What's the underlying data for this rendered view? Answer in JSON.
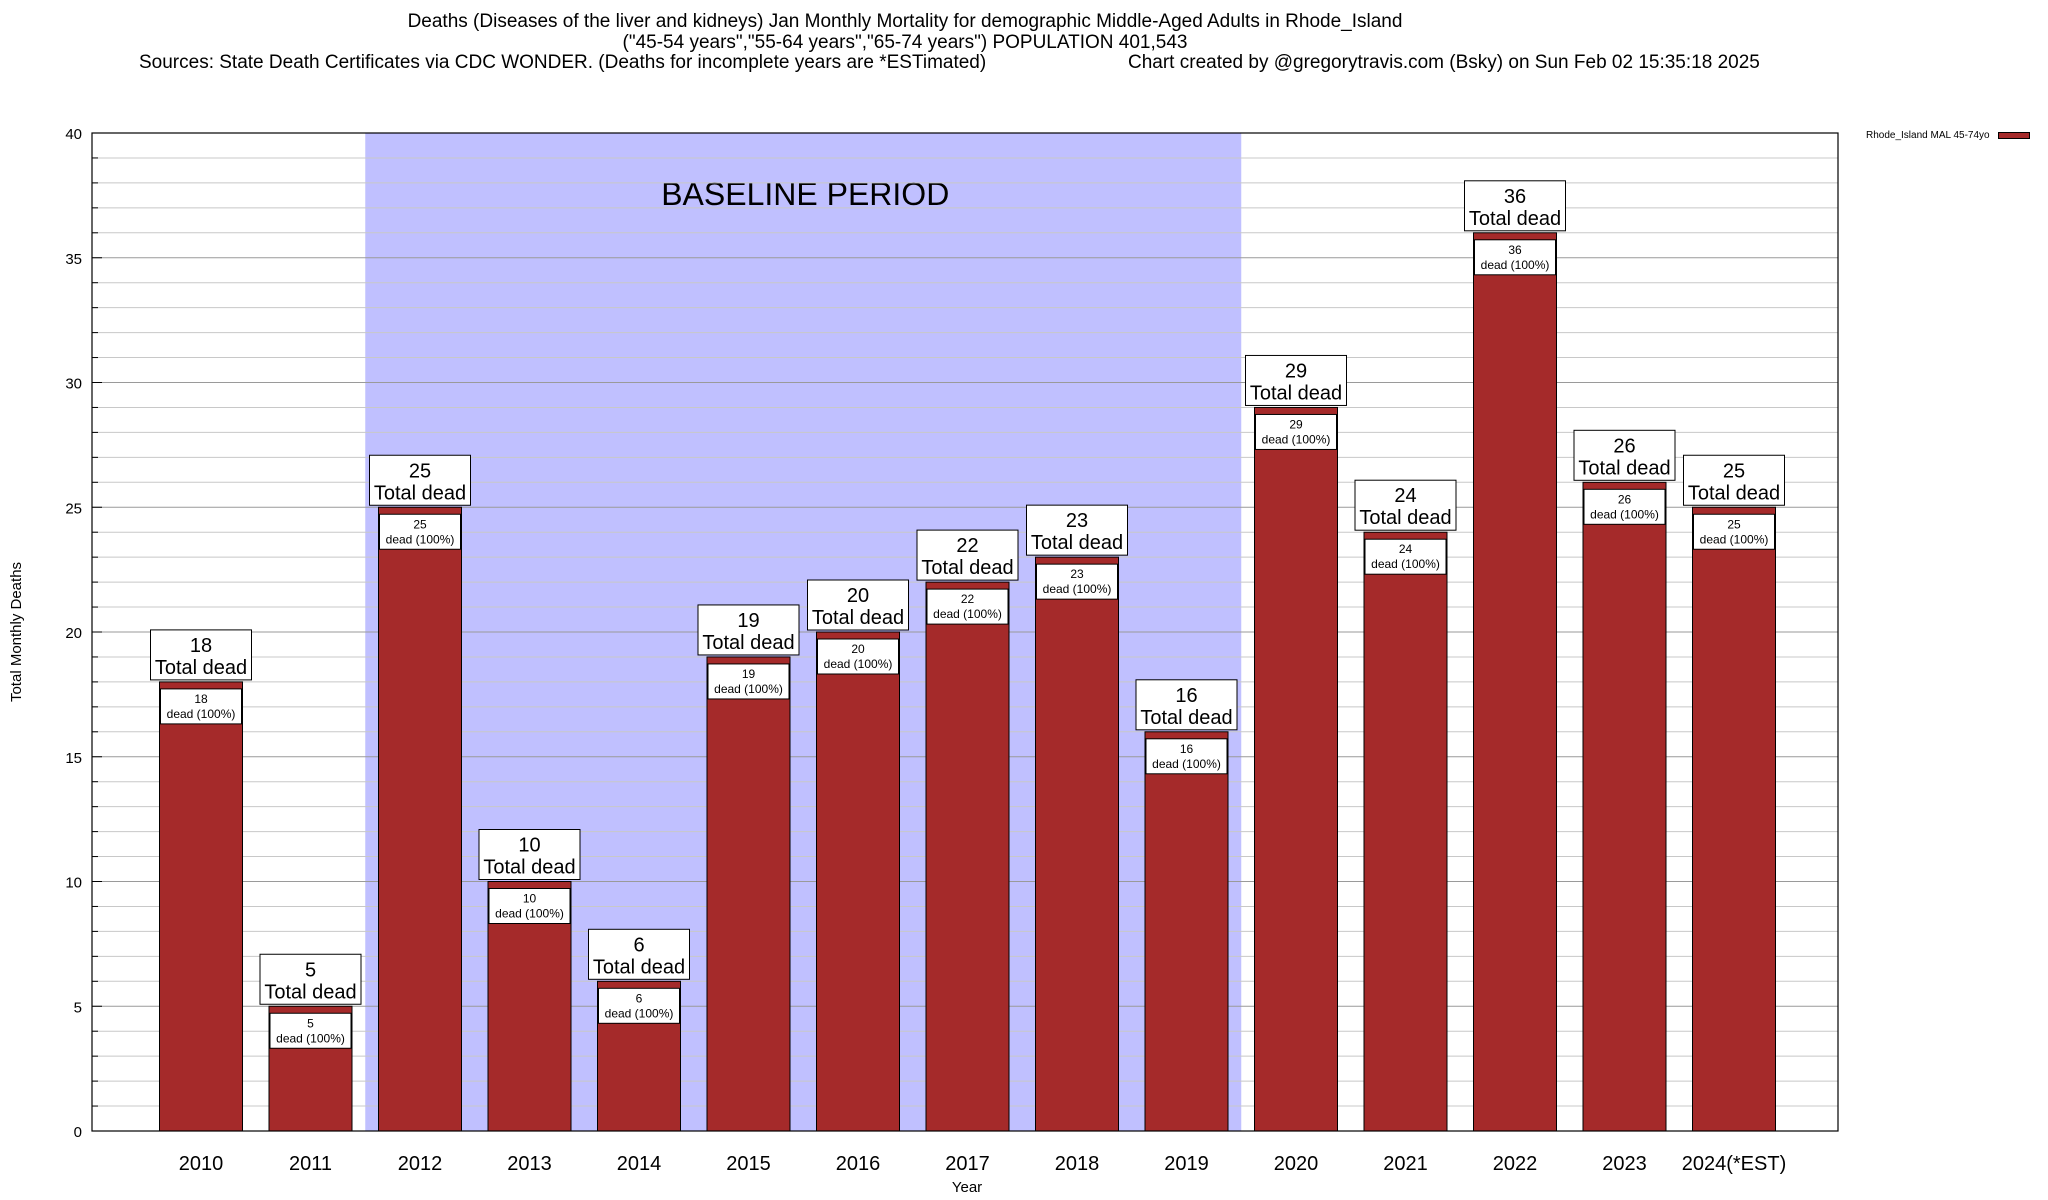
{
  "header": {
    "title_line1": "Deaths (Diseases of the liver and kidneys) Jan Monthly Mortality for demographic Middle-Aged Adults in Rhode_Island",
    "title_line2": "(\"45-54 years\",\"55-64 years\",\"65-74 years\") POPULATION 401,543",
    "sources": "Sources: State Death Certificates via CDC WONDER. (Deaths for incomplete years are *ESTimated)",
    "credit": "Chart created by @gregorytravis.com (Bsky) on Sun Feb 02 15:35:18 2025"
  },
  "legend": {
    "label": "Rhode_Island MAL 45-74yo",
    "color": "#a52a2a"
  },
  "chart_data": {
    "type": "bar",
    "xlabel": "Year",
    "ylabel": "Total Monthly Deaths",
    "ylim": [
      0,
      40
    ],
    "yticks": [
      0,
      5,
      10,
      15,
      20,
      25,
      30,
      35,
      40
    ],
    "grid": true,
    "legend_position": "top-right",
    "categories": [
      "2010",
      "2011",
      "2012",
      "2013",
      "2014",
      "2015",
      "2016",
      "2017",
      "2018",
      "2019",
      "2020",
      "2021",
      "2022",
      "2023",
      "2024(*EST)"
    ],
    "series": [
      {
        "name": "Rhode_Island MAL 45-74yo",
        "color": "#a52a2a",
        "values": [
          18,
          5,
          25,
          10,
          6,
          19,
          20,
          22,
          23,
          16,
          29,
          24,
          36,
          26,
          25
        ]
      }
    ],
    "top_label_suffix": "Total dead",
    "inner_label_suffix": "dead (100%)",
    "baseline": {
      "label": "BASELINE PERIOD",
      "from": "2012",
      "to": "2019",
      "color": "#c0c0ff"
    }
  }
}
